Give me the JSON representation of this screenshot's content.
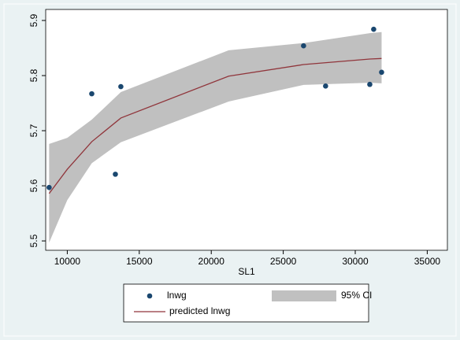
{
  "chart_data": {
    "type": "scatter_fit",
    "x_label": "SL1",
    "xlim": [
      8500,
      36400
    ],
    "xticks": [
      10000,
      15000,
      20000,
      25000,
      30000,
      35000
    ],
    "ylim": [
      5.483,
      5.92
    ],
    "yticks": [
      5.5,
      5.6,
      5.7,
      5.8,
      5.9
    ],
    "legend": "bottom",
    "series": [
      {
        "name": "95% CI",
        "type": "band",
        "color": "#c0c0c0",
        "x": [
          8740,
          10000,
          11700,
          13720,
          21210,
          26410,
          31010,
          31830
        ],
        "upper": [
          5.676,
          5.687,
          5.72,
          5.77,
          5.846,
          5.859,
          5.877,
          5.879
        ],
        "lower": [
          5.497,
          5.574,
          5.641,
          5.679,
          5.753,
          5.783,
          5.787,
          5.786
        ]
      },
      {
        "name": "lnwg",
        "type": "scatter",
        "color": "#1a476f",
        "x": [
          8740,
          11700,
          13340,
          13720,
          26410,
          27940,
          31010,
          31280,
          31830
        ],
        "values": [
          5.597,
          5.767,
          5.621,
          5.78,
          5.854,
          5.781,
          5.784,
          5.884,
          5.806
        ]
      },
      {
        "name": "predicted lnwg",
        "type": "line",
        "color": "#90353b",
        "x": [
          8740,
          10000,
          11700,
          13720,
          21210,
          26410,
          31010,
          31830
        ],
        "values": [
          5.586,
          5.63,
          5.68,
          5.723,
          5.799,
          5.82,
          5.83,
          5.831
        ]
      }
    ]
  }
}
